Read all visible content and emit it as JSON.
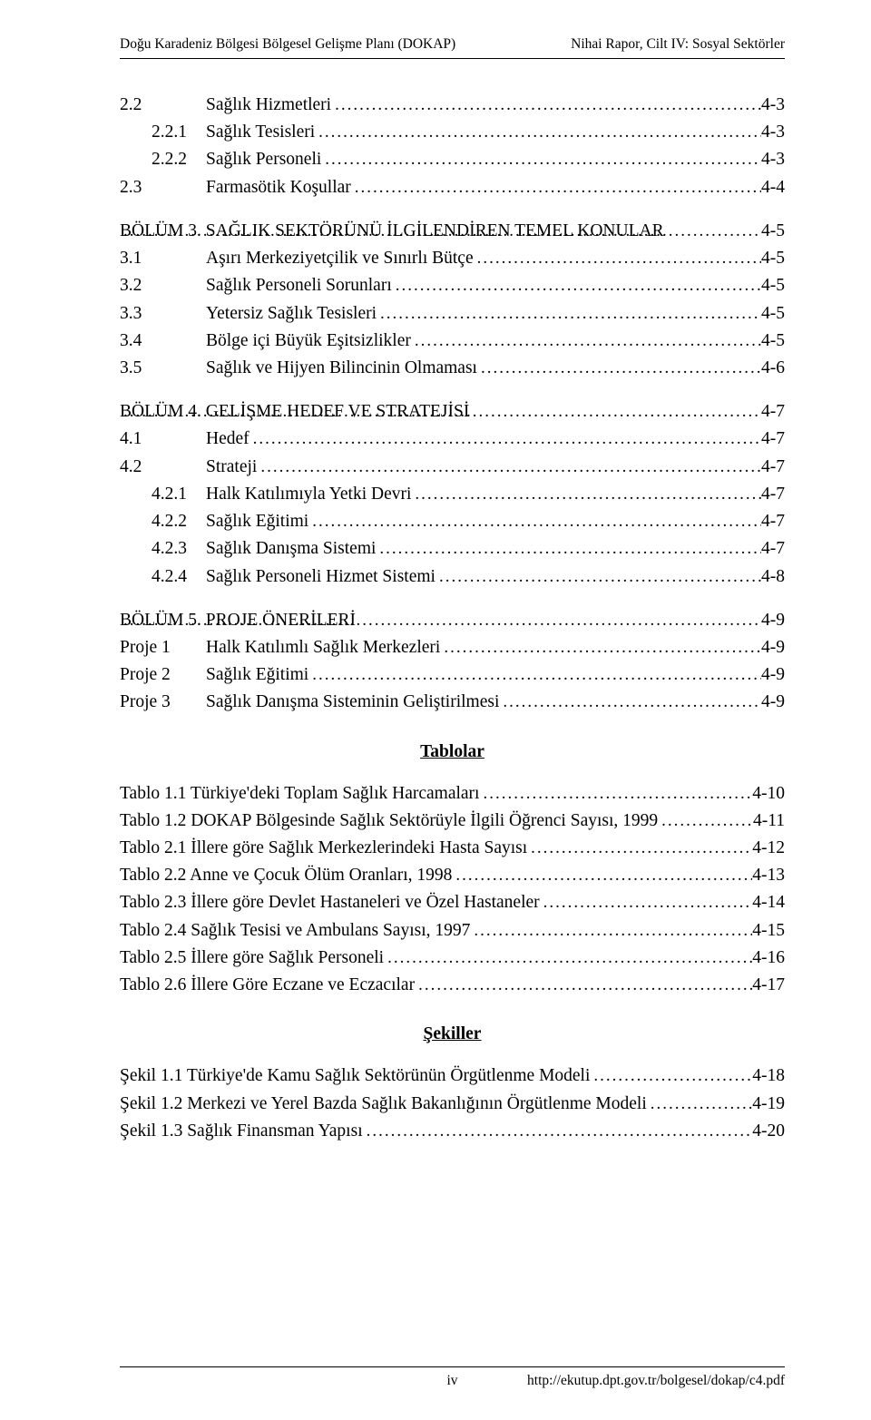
{
  "header": {
    "left": "Doğu Karadeniz Bölgesi Bölgesel Gelişme Planı (DOKAP)",
    "right": "Nihai Rapor, Cilt IV: Sosyal Sektörler"
  },
  "toc": [
    {
      "num": "2.2",
      "indent": 1,
      "title": "Sağlık Hizmetleri",
      "page": "4-3"
    },
    {
      "num": "2.2.1",
      "indent": 2,
      "title": "Sağlık Tesisleri",
      "page": "4-3"
    },
    {
      "num": "2.2.2",
      "indent": 2,
      "title": "Sağlık Personeli",
      "page": "4-3"
    },
    {
      "num": "2.3",
      "indent": 1,
      "title": "Farmasötik Koşullar",
      "page": "4-4"
    },
    {
      "gap": true
    },
    {
      "num": "BÖLÜM 3. SAĞLIK SEKTÖRÜNÜ İLGİLENDİREN TEMEL KONULAR",
      "indent": 0,
      "title": "",
      "page": "4-5"
    },
    {
      "num": "3.1",
      "indent": 1,
      "title": "Aşırı Merkeziyetçilik ve Sınırlı Bütçe",
      "page": "4-5"
    },
    {
      "num": "3.2",
      "indent": 1,
      "title": "Sağlık Personeli Sorunları",
      "page": "4-5"
    },
    {
      "num": "3.3",
      "indent": 1,
      "title": "Yetersiz Sağlık Tesisleri",
      "page": "4-5"
    },
    {
      "num": "3.4",
      "indent": 1,
      "title": "Bölge içi Büyük Eşitsizlikler",
      "page": "4-5"
    },
    {
      "num": "3.5",
      "indent": 1,
      "title": "Sağlık ve Hijyen Bilincinin Olmaması",
      "page": "4-6"
    },
    {
      "gap": true
    },
    {
      "num": "BÖLÜM 4. GELİŞME HEDEF VE STRATEJİSİ",
      "indent": 0,
      "title": "",
      "page": "4-7"
    },
    {
      "num": "4.1",
      "indent": 1,
      "title": "Hedef",
      "page": "4-7"
    },
    {
      "num": "4.2",
      "indent": 1,
      "title": "Strateji",
      "page": "4-7"
    },
    {
      "num": "4.2.1",
      "indent": 3,
      "title": "Halk Katılımıyla Yetki Devri",
      "page": "4-7"
    },
    {
      "num": "4.2.2",
      "indent": 3,
      "title": "Sağlık Eğitimi",
      "page": "4-7"
    },
    {
      "num": "4.2.3",
      "indent": 3,
      "title": "Sağlık Danışma Sistemi",
      "page": "4-7"
    },
    {
      "num": "4.2.4",
      "indent": 3,
      "title": "Sağlık Personeli Hizmet Sistemi",
      "page": "4-8"
    },
    {
      "gap": true
    },
    {
      "num": "BÖLÜM 5. PROJE ÖNERİLERİ",
      "indent": 0,
      "title": "",
      "page": "4-9"
    },
    {
      "num": "Proje 1",
      "indent": 1,
      "title": "Halk Katılımlı Sağlık Merkezleri",
      "page": "4-9"
    },
    {
      "num": "Proje 2",
      "indent": 1,
      "title": "Sağlık Eğitimi",
      "page": "4-9"
    },
    {
      "num": "Proje 3",
      "indent": 1,
      "title": "Sağlık Danışma Sisteminin Geliştirilmesi",
      "page": "4-9"
    }
  ],
  "tablesHeading": "Tablolar",
  "tables": [
    {
      "title": "Tablo 1.1 Türkiye'deki Toplam Sağlık Harcamaları",
      "page": "4-10"
    },
    {
      "title": "Tablo 1.2 DOKAP Bölgesinde Sağlık Sektörüyle İlgili Öğrenci Sayısı, 1999",
      "page": "4-11"
    },
    {
      "title": "Tablo 2.1 İllere göre Sağlık Merkezlerindeki Hasta Sayısı",
      "page": "4-12"
    },
    {
      "title": "Tablo 2.2 Anne ve Çocuk Ölüm Oranları, 1998",
      "page": "4-13"
    },
    {
      "title": "Tablo 2.3 İllere göre Devlet Hastaneleri ve Özel Hastaneler",
      "page": "4-14"
    },
    {
      "title": "Tablo 2.4 Sağlık Tesisi ve Ambulans Sayısı, 1997",
      "page": "4-15"
    },
    {
      "title": "Tablo 2.5 İllere göre Sağlık Personeli",
      "page": "4-16"
    },
    {
      "title": "Tablo 2.6 İllere Göre Eczane ve Eczacılar",
      "page": "4-17"
    }
  ],
  "figuresHeading": "Şekiller",
  "figures": [
    {
      "title": "Şekil 1.1 Türkiye'de Kamu Sağlık Sektörünün Örgütlenme Modeli",
      "page": "4-18"
    },
    {
      "title": "Şekil 1.2 Merkezi ve Yerel Bazda Sağlık Bakanlığının Örgütlenme Modeli",
      "page": "4-19"
    },
    {
      "title": "Şekil 1.3 Sağlık Finansman Yapısı",
      "page": "4-20"
    }
  ],
  "footer": {
    "pageNum": "iv",
    "url": "http://ekutup.dpt.gov.tr/bolgesel/dokap/c4.pdf"
  }
}
